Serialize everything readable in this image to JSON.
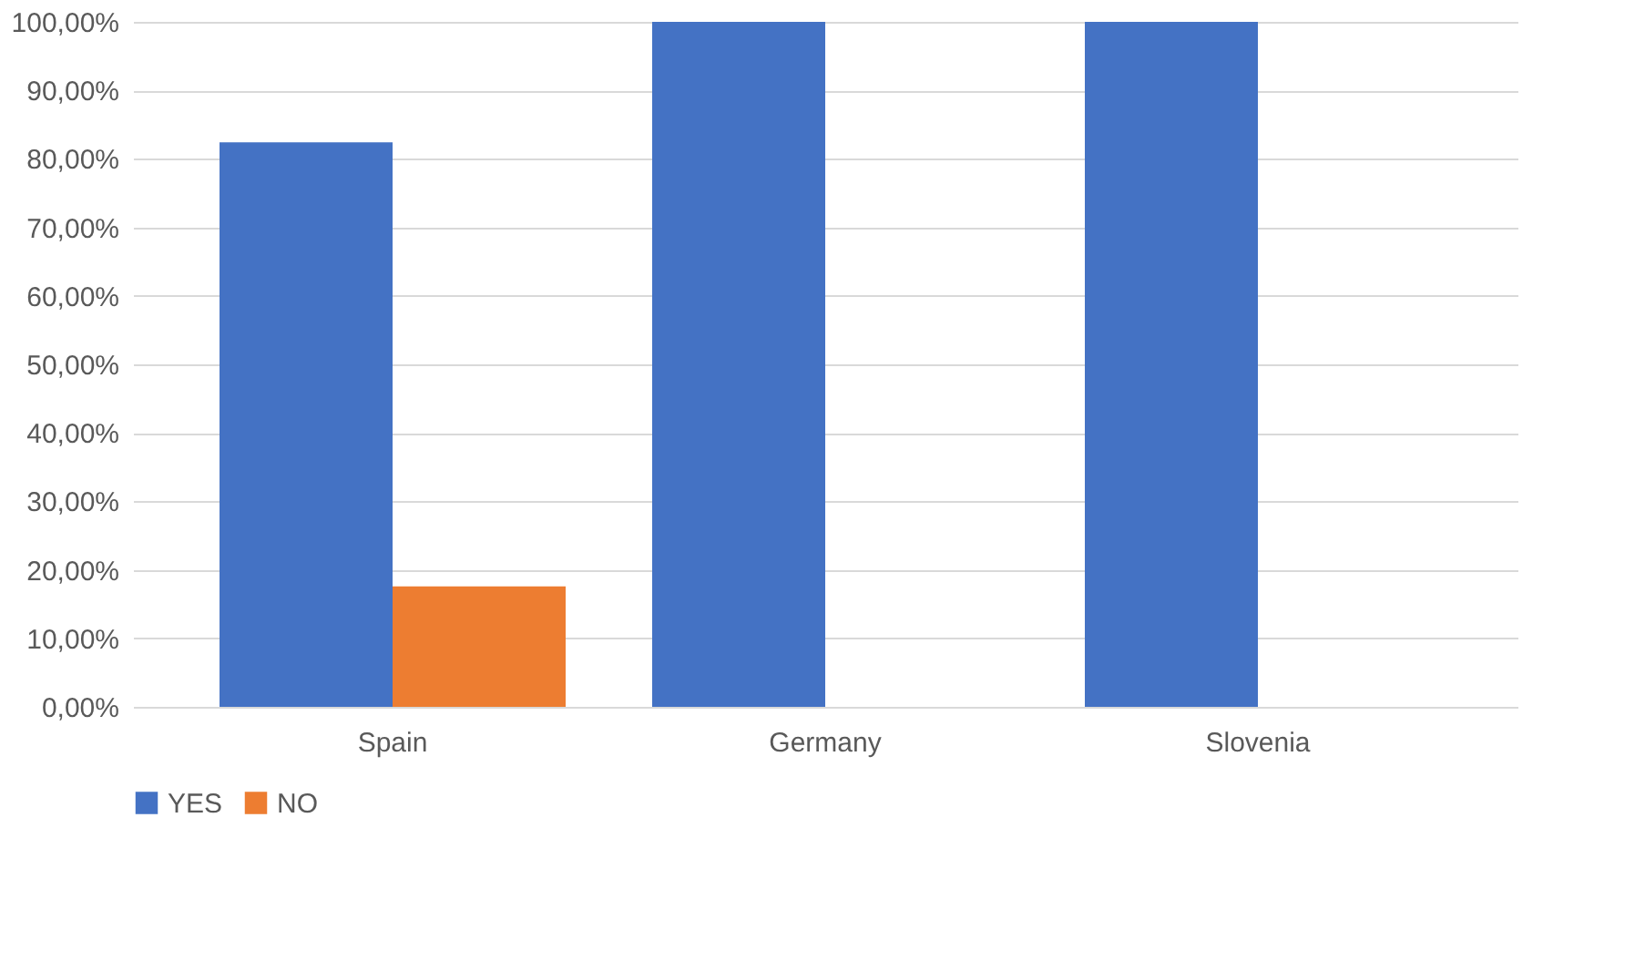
{
  "chart_data": {
    "type": "bar",
    "categories": [
      "Spain",
      "Germany",
      "Slovenia"
    ],
    "series": [
      {
        "name": "YES",
        "color": "#4472c4",
        "values": [
          82.4,
          100,
          100
        ]
      },
      {
        "name": "NO",
        "color": "#ed7d31",
        "values": [
          17.6,
          0,
          0
        ]
      }
    ],
    "ylim": [
      0,
      100
    ],
    "yticks": [
      {
        "value": 0,
        "label": "0,00%"
      },
      {
        "value": 10,
        "label": "10,00%"
      },
      {
        "value": 20,
        "label": "20,00%"
      },
      {
        "value": 30,
        "label": "30,00%"
      },
      {
        "value": 40,
        "label": "40,00%"
      },
      {
        "value": 50,
        "label": "50,00%"
      },
      {
        "value": 60,
        "label": "60,00%"
      },
      {
        "value": 70,
        "label": "70,00%"
      },
      {
        "value": 80,
        "label": "80,00%"
      },
      {
        "value": 90,
        "label": "90,00%"
      },
      {
        "value": 100,
        "label": "100,00%"
      }
    ],
    "grid": "y",
    "legend": "bottom"
  }
}
